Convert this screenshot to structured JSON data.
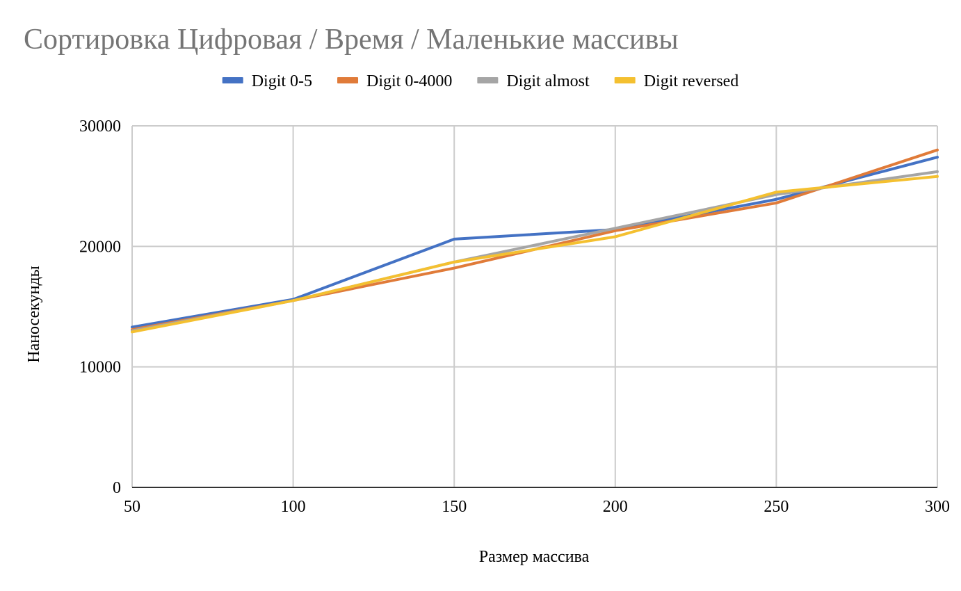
{
  "chart_data": {
    "type": "line",
    "title": "Сортировка Цифровая / Время / Маленькие массивы",
    "xlabel": "Размер массива",
    "ylabel": "Наносекунды",
    "x": [
      50,
      100,
      150,
      200,
      250,
      300
    ],
    "x_tick_labels": [
      "50",
      "100",
      "150",
      "200",
      "250",
      "300"
    ],
    "ylim": [
      0,
      30000
    ],
    "y_ticks": [
      0,
      10000,
      20000,
      30000
    ],
    "y_tick_labels": [
      "0",
      "10000",
      "20000",
      "30000"
    ],
    "grid": true,
    "legend_position": "top",
    "series": [
      {
        "name": "Digit 0-5",
        "color": "#4472C4",
        "values": [
          13300,
          15600,
          20600,
          21400,
          23900,
          27400
        ]
      },
      {
        "name": "Digit 0-4000",
        "color": "#E07B39",
        "values": [
          13100,
          15500,
          18200,
          21300,
          23600,
          28000
        ]
      },
      {
        "name": "Digit almost",
        "color": "#A5A5A5",
        "values": [
          13000,
          15500,
          18700,
          21500,
          24300,
          26200
        ]
      },
      {
        "name": "Digit reversed",
        "color": "#F4C030",
        "values": [
          12900,
          15500,
          18700,
          20800,
          24500,
          25800
        ]
      }
    ]
  }
}
